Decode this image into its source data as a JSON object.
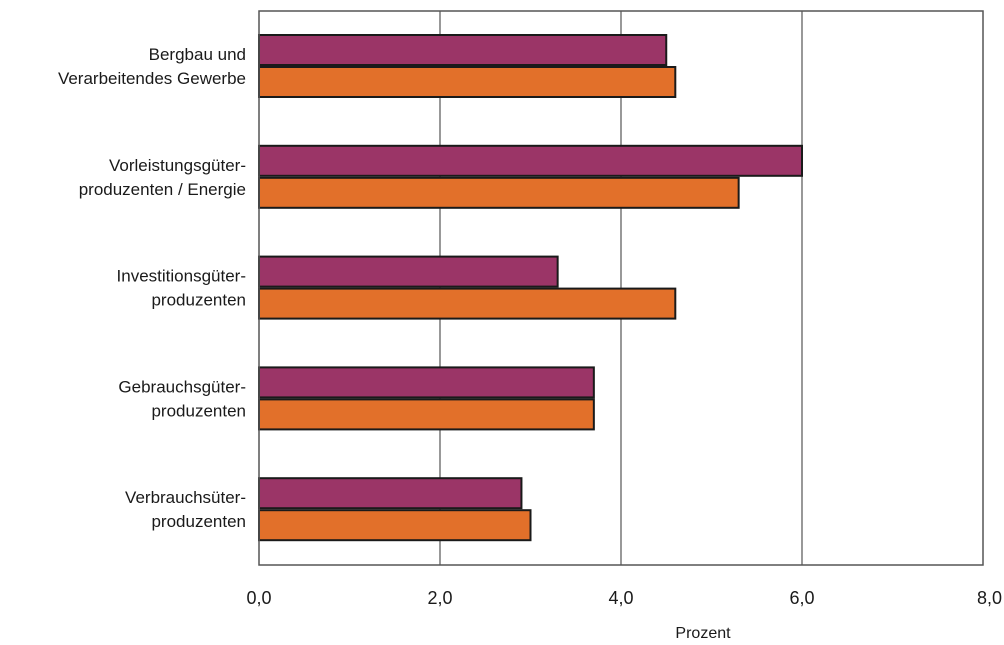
{
  "chart_data": {
    "type": "bar",
    "orientation": "horizontal",
    "categories": [
      [
        "Bergbau und",
        "Verarbeitendes Gewerbe"
      ],
      [
        "Vorleistungsgüter-",
        "produzenten /  Energie"
      ],
      [
        "Investitionsgüter-",
        "produzenten"
      ],
      [
        "Gebrauchsgüter-",
        "produzenten"
      ],
      [
        "Verbrauchsüter-",
        "produzenten"
      ]
    ],
    "series": [
      {
        "color": "#9b3567",
        "values": [
          4.5,
          6.0,
          3.3,
          3.7,
          2.9
        ]
      },
      {
        "color": "#e2702a",
        "values": [
          4.6,
          5.3,
          4.6,
          3.7,
          3.0
        ]
      }
    ],
    "xlim": [
      0,
      8
    ],
    "xticks": [
      {
        "value": 0,
        "label": "0,0"
      },
      {
        "value": 2,
        "label": "2,0"
      },
      {
        "value": 4,
        "label": "4,0"
      },
      {
        "value": 6,
        "label": "6,0"
      },
      {
        "value": 8,
        "label": "8,0"
      }
    ],
    "xlabel": "Prozent",
    "title": "",
    "ylabel": "",
    "grid": "vertical",
    "legend": "none"
  }
}
